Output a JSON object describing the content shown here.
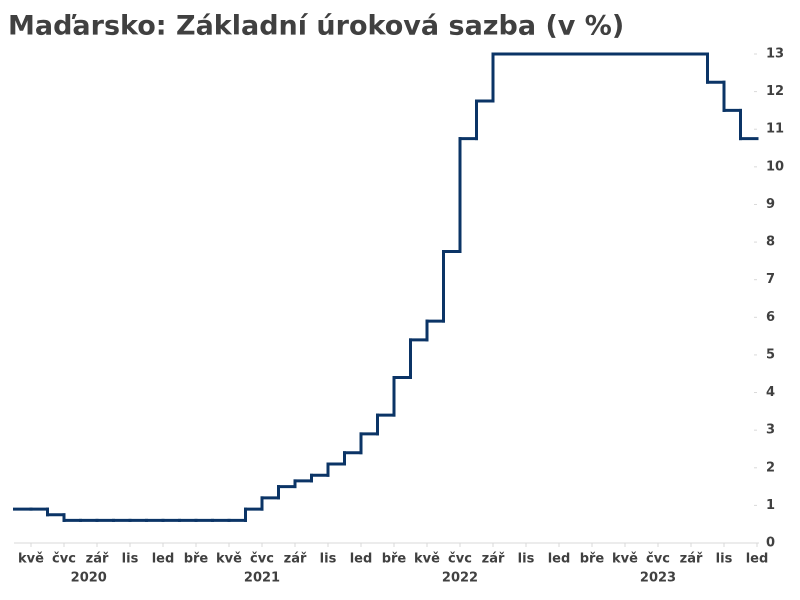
{
  "chart_data": {
    "type": "step-line",
    "title": "Maďarsko: Základní úroková sazba (v %)",
    "x": [
      "2020-04",
      "2020-05",
      "2020-06",
      "2020-07",
      "2020-08",
      "2020-09",
      "2020-10",
      "2020-11",
      "2020-12",
      "2021-01",
      "2021-02",
      "2021-03",
      "2021-04",
      "2021-05",
      "2021-06",
      "2021-07",
      "2021-08",
      "2021-09",
      "2021-10",
      "2021-11",
      "2021-12",
      "2022-01",
      "2022-02",
      "2022-03",
      "2022-04",
      "2022-05",
      "2022-06",
      "2022-07",
      "2022-08",
      "2022-09",
      "2022-10",
      "2022-11",
      "2022-12",
      "2023-01",
      "2023-02",
      "2023-03",
      "2023-04",
      "2023-05",
      "2023-06",
      "2023-07",
      "2023-08",
      "2023-09",
      "2023-10",
      "2023-11",
      "2023-12"
    ],
    "series": [
      {
        "name": "Základní úroková sazba",
        "color": "#0b3466",
        "values": [
          0.9,
          0.9,
          0.75,
          0.6,
          0.6,
          0.6,
          0.6,
          0.6,
          0.6,
          0.6,
          0.6,
          0.6,
          0.6,
          0.6,
          0.9,
          1.2,
          1.5,
          1.65,
          1.8,
          2.1,
          2.4,
          2.9,
          3.4,
          4.4,
          5.4,
          5.9,
          7.75,
          10.75,
          11.75,
          13,
          13,
          13,
          13,
          13,
          13,
          13,
          13,
          13,
          13,
          13,
          13,
          13,
          12.25,
          11.5,
          10.75
        ]
      }
    ],
    "xlim": [
      "2020-04",
      "2024-01"
    ],
    "xticks": [
      {
        "value": "2020-05",
        "label": "kvě"
      },
      {
        "value": "2020-07",
        "label": "čvc"
      },
      {
        "value": "2020-09",
        "label": "zář"
      },
      {
        "value": "2020-11",
        "label": "lis"
      },
      {
        "value": "2021-01",
        "label": "led"
      },
      {
        "value": "2021-03",
        "label": "bře"
      },
      {
        "value": "2021-05",
        "label": "kvě"
      },
      {
        "value": "2021-07",
        "label": "čvc"
      },
      {
        "value": "2021-09",
        "label": "zář"
      },
      {
        "value": "2021-11",
        "label": "lis"
      },
      {
        "value": "2022-01",
        "label": "led"
      },
      {
        "value": "2022-03",
        "label": "bře"
      },
      {
        "value": "2022-05",
        "label": "kvě"
      },
      {
        "value": "2022-07",
        "label": "čvc"
      },
      {
        "value": "2022-09",
        "label": "zář"
      },
      {
        "value": "2022-11",
        "label": "lis"
      },
      {
        "value": "2023-01",
        "label": "led"
      },
      {
        "value": "2023-03",
        "label": "bře"
      },
      {
        "value": "2023-05",
        "label": "kvě"
      },
      {
        "value": "2023-07",
        "label": "čvc"
      },
      {
        "value": "2023-09",
        "label": "zář"
      },
      {
        "value": "2023-11",
        "label": "lis"
      },
      {
        "value": "2024-01",
        "label": "led"
      }
    ],
    "years": [
      2020,
      2021,
      2022,
      2023
    ],
    "ylim": [
      0,
      13
    ],
    "yticks": [
      0,
      1,
      2,
      3,
      4,
      5,
      6,
      7,
      8,
      9,
      10,
      11,
      12,
      13
    ],
    "y_axis_side": "right"
  }
}
